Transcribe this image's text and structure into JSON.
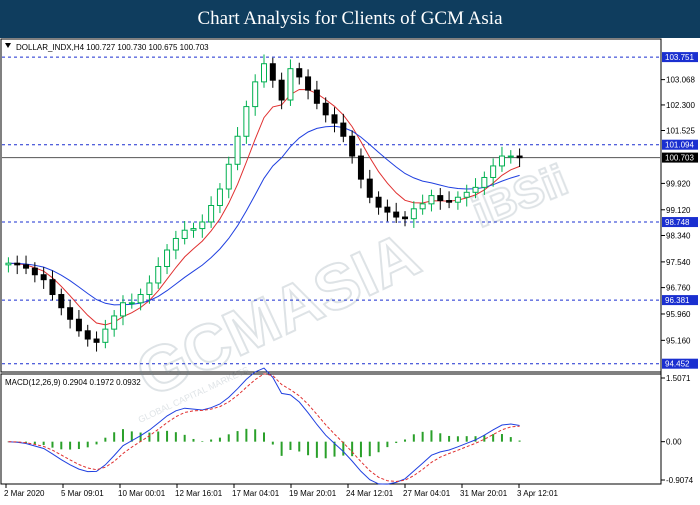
{
  "banner": {
    "title": "Chart Analysis for Clients of GCM Asia"
  },
  "header": {
    "symbol_info": "DOLLAR_INDX,H4  100.727 100.730 100.675 100.703",
    "macd_info": "MACD(12,26,9) 0.2904 0.1972 0.0932"
  },
  "watermark": {
    "text": "GCMASIA",
    "subtext": "GLOBAL CAPITAL MARKETS",
    "logo_text": "iBSii"
  },
  "colors": {
    "bull": "#00b050",
    "bear": "#000000",
    "sma_fast": "#e03030",
    "sma_slow": "#2040e0",
    "hline": "#1a2fd0",
    "macd_line": "#2040e0",
    "signal_line": "#e03030",
    "histogram": "#2aa02a",
    "label_bg": "#1a2fd0",
    "current_bg": "#000000"
  },
  "chart_data": {
    "type": "candlestick",
    "price_axis": {
      "min": 94.2,
      "max": 104.3,
      "ticks": [
        "103.068",
        "102.300",
        "101.525",
        "99.920",
        "99.120",
        "98.340",
        "97.540",
        "96.760",
        "95.960",
        "95.160"
      ]
    },
    "time_axis_labels": [
      "2 Mar 2020",
      "5 Mar 09:01",
      "10 Mar 00:01",
      "12 Mar 16:01",
      "17 Mar 04:01",
      "19 Mar 20:01",
      "24 Mar 12:01",
      "27 Mar 04:01",
      "31 Mar 20:01",
      "3 Apr 12:01"
    ],
    "horizontal_levels": [
      {
        "label": "103.751",
        "value": 103.751
      },
      {
        "label": "101.094",
        "value": 101.094
      },
      {
        "label": "98.748",
        "value": 98.748
      },
      {
        "label": "96.381",
        "value": 96.381
      },
      {
        "label": "94.452",
        "value": 94.452
      }
    ],
    "current_price": {
      "label": "100.703",
      "value": 100.703
    },
    "series": [
      {
        "name": "price",
        "values": [
          97.5,
          97.45,
          97.35,
          97.15,
          97.0,
          96.55,
          96.15,
          95.8,
          95.45,
          95.2,
          95.1,
          95.5,
          95.9,
          96.3,
          96.3,
          96.55,
          96.9,
          97.4,
          97.9,
          98.25,
          98.5,
          98.55,
          98.75,
          99.25,
          99.75,
          100.5,
          101.35,
          102.25,
          103.0,
          103.55,
          103.05,
          102.45,
          103.4,
          103.15,
          102.75,
          102.35,
          102.0,
          101.75,
          101.35,
          100.75,
          100.05,
          99.5,
          99.2,
          99.05,
          98.9,
          98.85,
          99.15,
          99.3,
          99.55,
          99.4,
          99.35,
          99.5,
          99.65,
          99.8,
          100.1,
          100.45,
          100.75,
          100.75,
          100.7
        ]
      }
    ],
    "macd": {
      "range": [
        -0.9074,
        1.5071
      ],
      "ticks": [
        "1.5071",
        "0.00",
        "-0.9074"
      ]
    }
  }
}
